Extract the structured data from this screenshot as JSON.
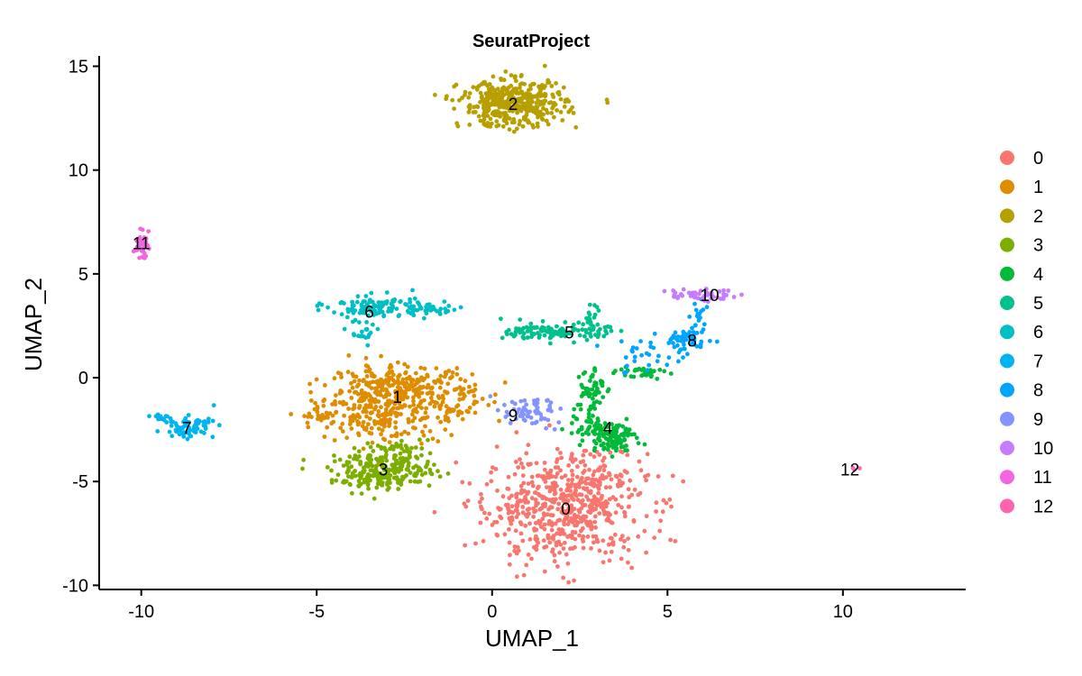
{
  "chart_data": {
    "type": "scatter",
    "title": "SeuratProject",
    "xlabel": "UMAP_1",
    "ylabel": "UMAP_2",
    "xlim": [
      -11.2,
      13.5
    ],
    "ylim": [
      -10.2,
      15.5
    ],
    "xticks": [
      -10,
      -5,
      0,
      5,
      10
    ],
    "yticks": [
      -10,
      -5,
      0,
      5,
      10,
      15
    ],
    "grid": false,
    "legend_position": "right",
    "clusters": [
      {
        "name": "0",
        "color": "#F8766D",
        "center": [
          2.1,
          -6.5
        ],
        "label_pos": [
          2.1,
          -6.3
        ]
      },
      {
        "name": "1",
        "color": "#DE8C00",
        "center": [
          -2.7,
          -1.2
        ],
        "label_pos": [
          -2.7,
          -0.9
        ]
      },
      {
        "name": "2",
        "color": "#B79F00",
        "center": [
          0.6,
          13.2
        ],
        "label_pos": [
          0.6,
          13.2
        ]
      },
      {
        "name": "3",
        "color": "#7CAE00",
        "center": [
          -3.0,
          -4.6
        ],
        "label_pos": [
          -3.1,
          -4.4
        ]
      },
      {
        "name": "4",
        "color": "#00BA38",
        "center": [
          3.3,
          -2.8
        ],
        "label_pos": [
          3.3,
          -2.4
        ]
      },
      {
        "name": "5",
        "color": "#00C08B",
        "center": [
          2.2,
          2.2
        ],
        "label_pos": [
          2.2,
          2.2
        ]
      },
      {
        "name": "6",
        "color": "#00BFC4",
        "center": [
          -3.4,
          3.1
        ],
        "label_pos": [
          -3.5,
          3.2
        ]
      },
      {
        "name": "7",
        "color": "#00B4F0",
        "center": [
          -8.7,
          -2.4
        ],
        "label_pos": [
          -8.7,
          -2.4
        ]
      },
      {
        "name": "8",
        "color": "#00A5FF",
        "center": [
          5.6,
          1.8
        ],
        "label_pos": [
          5.7,
          1.8
        ]
      },
      {
        "name": "9",
        "color": "#8494FF",
        "center": [
          0.8,
          -1.8
        ],
        "label_pos": [
          0.6,
          -1.8
        ]
      },
      {
        "name": "10",
        "color": "#C77CFF",
        "center": [
          6.1,
          4.0
        ],
        "label_pos": [
          6.2,
          4.0
        ]
      },
      {
        "name": "11",
        "color": "#F564E3",
        "center": [
          -10.0,
          6.4
        ],
        "label_pos": [
          -10.0,
          6.5
        ]
      },
      {
        "name": "12",
        "color": "#FF64B0",
        "center": [
          10.3,
          -4.4
        ],
        "label_pos": [
          10.2,
          -4.4
        ]
      }
    ]
  }
}
